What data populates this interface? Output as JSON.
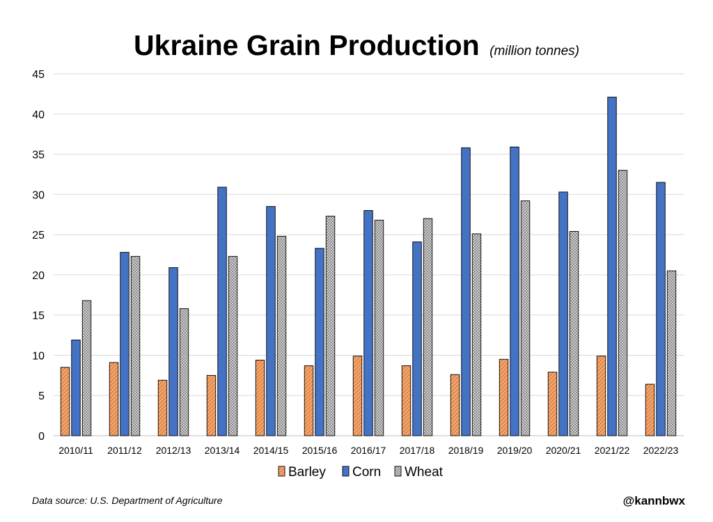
{
  "chart_data": {
    "type": "bar",
    "title": "Ukraine Grain Production",
    "subtitle": "(million tonnes)",
    "xlabel": "",
    "ylabel": "",
    "ylim": [
      0,
      45
    ],
    "yticks": [
      0,
      5,
      10,
      15,
      20,
      25,
      30,
      35,
      40,
      45
    ],
    "grid": true,
    "legend_position": "bottom",
    "categories": [
      "2010/11",
      "2011/12",
      "2012/13",
      "2013/14",
      "2014/15",
      "2015/16",
      "2016/17",
      "2017/18",
      "2018/19",
      "2019/20",
      "2020/21",
      "2021/22",
      "2022/23"
    ],
    "series": [
      {
        "name": "Barley",
        "color": "#f4a46a",
        "pattern": "diagonal-hatch",
        "values": [
          8.5,
          9.1,
          6.9,
          7.5,
          9.4,
          8.7,
          9.9,
          8.7,
          7.6,
          9.5,
          7.9,
          9.9,
          6.4
        ]
      },
      {
        "name": "Corn",
        "color": "#4472c4",
        "pattern": "solid",
        "values": [
          11.9,
          22.8,
          20.9,
          30.9,
          28.5,
          23.3,
          28.0,
          24.1,
          35.8,
          35.9,
          30.3,
          42.1,
          31.5
        ]
      },
      {
        "name": "Wheat",
        "color": "#d0d0d0",
        "pattern": "crosshatch",
        "values": [
          16.8,
          22.3,
          15.8,
          22.3,
          24.8,
          27.3,
          26.8,
          27.0,
          25.1,
          29.2,
          25.4,
          33.0,
          20.5
        ]
      }
    ]
  },
  "footer": {
    "source": "Data source: U.S. Department of Agriculture",
    "handle": "@kannbwx"
  }
}
